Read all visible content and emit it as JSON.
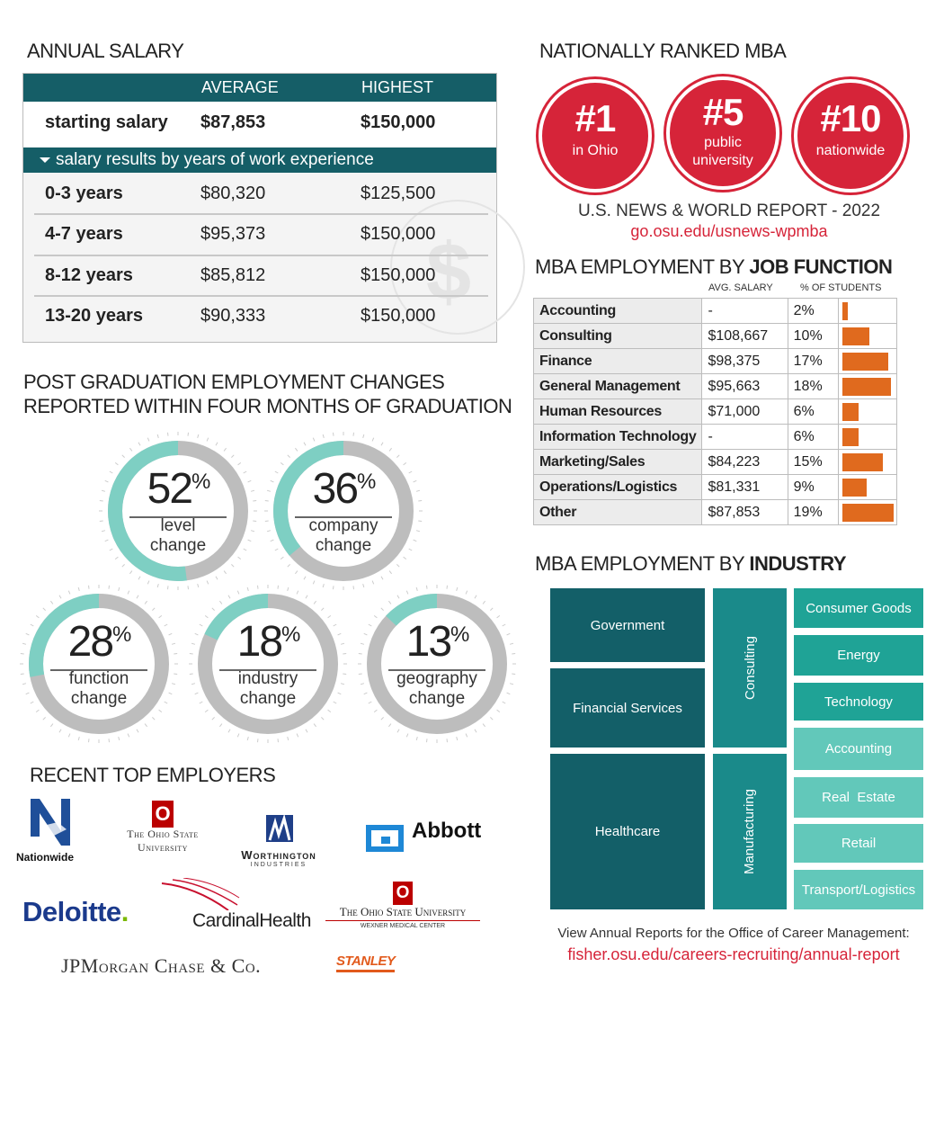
{
  "annual_salary": {
    "title": "ANNUAL SALARY",
    "col_avg": "AVERAGE",
    "col_high": "HIGHEST",
    "starting": {
      "label": "starting salary",
      "avg": "$87,853",
      "high": "$150,000"
    },
    "band_label": "salary results by years of work experience",
    "rows": [
      {
        "years": "0-3 years",
        "avg": "$80,320",
        "high": "$125,500"
      },
      {
        "years": "4-7 years",
        "avg": "$95,373",
        "high": "$150,000"
      },
      {
        "years": "8-12 years",
        "avg": "$85,812",
        "high": "$150,000"
      },
      {
        "years": "13-20 years",
        "avg": "$90,333",
        "high": "$150,000"
      }
    ]
  },
  "ranked": {
    "title": "NATIONALLY RANKED MBA",
    "badges": [
      {
        "rank": "#1",
        "line1": "in Ohio",
        "line2": ""
      },
      {
        "rank": "#5",
        "line1": "public",
        "line2": "university"
      },
      {
        "rank": "#10",
        "line1": "nationwide",
        "line2": ""
      }
    ],
    "source": "U.S. NEWS & WORLD REPORT - 2022",
    "link": "go.osu.edu/usnews-wpmba",
    "color": "#d62439"
  },
  "job_function": {
    "title_prefix": "MBA EMPLOYMENT BY ",
    "title_bold": "JOB FUNCTION",
    "col_salary": "AVG. SALARY",
    "col_pct": "% OF STUDENTS",
    "rows": [
      {
        "function": "Accounting",
        "salary": "-",
        "pct": "2%",
        "value": 2
      },
      {
        "function": "Consulting",
        "salary": "$108,667",
        "pct": "10%",
        "value": 10
      },
      {
        "function": "Finance",
        "salary": "$98,375",
        "pct": "17%",
        "value": 17
      },
      {
        "function": "General Management",
        "salary": "$95,663",
        "pct": "18%",
        "value": 18
      },
      {
        "function": "Human Resources",
        "salary": "$71,000",
        "pct": "6%",
        "value": 6
      },
      {
        "function": "Information Technology",
        "salary": "-",
        "pct": "6%",
        "value": 6
      },
      {
        "function": "Marketing/Sales",
        "salary": "$84,223",
        "pct": "15%",
        "value": 15
      },
      {
        "function": "Operations/Logistics",
        "salary": "$81,331",
        "pct": "9%",
        "value": 9
      },
      {
        "function": "Other",
        "salary": "$87,853",
        "pct": "19%",
        "value": 19
      }
    ],
    "bar_color": "#e06a1e"
  },
  "industry": {
    "title_prefix": "MBA EMPLOYMENT BY ",
    "title_bold": "INDUSTRY",
    "blocks": {
      "government": "Government",
      "financial": "Financial Services",
      "healthcare": "Healthcare",
      "consulting": "Consulting",
      "manufacturing": "Manufacturing",
      "consumer": "Consumer Goods",
      "energy": "Energy",
      "technology": "Technology",
      "accounting": "Accounting",
      "realestate": "Real  Estate",
      "retail": "Retail",
      "transport": "Transport/Logistics"
    },
    "note": "View Annual Reports for the Office of Career Management:",
    "link": "fisher.osu.edu/careers-recruiting/annual-report",
    "colors": {
      "dark": "#135f68",
      "mid": "#1a8a8a",
      "bright": "#1fa396",
      "light": "#62c8ba"
    }
  },
  "changes": {
    "title_line1": "POST GRADUATION EMPLOYMENT CHANGES",
    "title_line2": "REPORTED WITHIN FOUR MONTHS OF GRADUATION",
    "items": [
      {
        "pct": 52,
        "pct_text": "52",
        "label1": "level",
        "label2": "change"
      },
      {
        "pct": 36,
        "pct_text": "36",
        "label1": "company",
        "label2": "change"
      },
      {
        "pct": 28,
        "pct_text": "28",
        "label1": "function",
        "label2": "change"
      },
      {
        "pct": 18,
        "pct_text": "18",
        "label1": "industry",
        "label2": "change"
      },
      {
        "pct": 13,
        "pct_text": "13",
        "label1": "geography",
        "label2": "change"
      }
    ],
    "percent_sign": "%",
    "colors": {
      "fill": "#7ecfc3",
      "track": "#bdbdbd"
    }
  },
  "employers": {
    "title": "RECENT TOP EMPLOYERS",
    "logos": {
      "nationwide": "Nationwide",
      "osu1_line1": "The Ohio State",
      "osu1_line2": "University",
      "osu_mark": "O",
      "worthington": "Worthington",
      "worthington_sub": "INDUSTRIES",
      "abbott": "Abbott",
      "deloitte": "Deloitte",
      "deloitte_dot": ".",
      "cardinal_a": "Cardinal",
      "cardinal_b": "Health",
      "osu2_line1": "The Ohio State University",
      "osu2_line2": "WEXNER MEDICAL CENTER",
      "jpm": "JPMorgan Chase & Co.",
      "stanley": "STANLEY"
    }
  }
}
